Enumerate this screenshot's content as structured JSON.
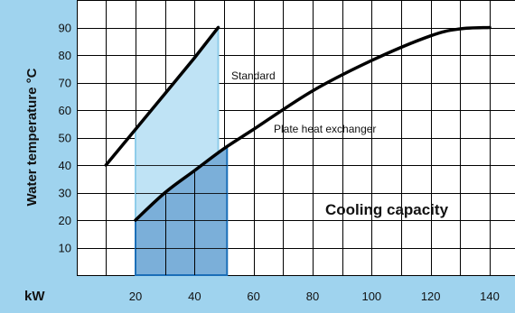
{
  "chart_data": {
    "type": "line",
    "title": "",
    "ylabel": "Water temperature °C",
    "xlabel": "kW",
    "annotation": "Cooling capacity",
    "xlim": [
      0,
      140
    ],
    "ylim": [
      0,
      100
    ],
    "x_ticks": [
      20,
      40,
      60,
      80,
      100,
      120,
      140
    ],
    "y_ticks": [
      10,
      20,
      30,
      40,
      50,
      60,
      70,
      80,
      90
    ],
    "grid": true,
    "colors": {
      "panel": "#9fd3ee",
      "grid": "#000000",
      "light_fill": "#bfe3f5",
      "light_fill_edge": "#8fcdea",
      "dark_fill": "#7bafd9",
      "dark_fill_edge": "#1b6fb8",
      "curve": "#000000"
    },
    "series": [
      {
        "name": "Standard",
        "points": [
          [
            10,
            40
          ],
          [
            20,
            53
          ],
          [
            30,
            66
          ],
          [
            40,
            79
          ],
          [
            48,
            90
          ]
        ]
      },
      {
        "name": "Plate heat exchanger",
        "points": [
          [
            20,
            20
          ],
          [
            30,
            30
          ],
          [
            40,
            38
          ],
          [
            50,
            46
          ],
          [
            60,
            53
          ],
          [
            80,
            67
          ],
          [
            100,
            78
          ],
          [
            120,
            87
          ],
          [
            130,
            89.5
          ],
          [
            140,
            90
          ]
        ]
      }
    ],
    "shaded_regions": [
      {
        "series": "Standard",
        "x_range": [
          20,
          48
        ],
        "points": [
          [
            20,
            53
          ],
          [
            48,
            90
          ]
        ]
      },
      {
        "series": "Plate heat exchanger",
        "x_range": [
          20,
          51
        ],
        "points": [
          [
            20,
            20
          ],
          [
            30,
            30
          ],
          [
            40,
            38
          ],
          [
            51,
            47
          ]
        ]
      }
    ]
  }
}
